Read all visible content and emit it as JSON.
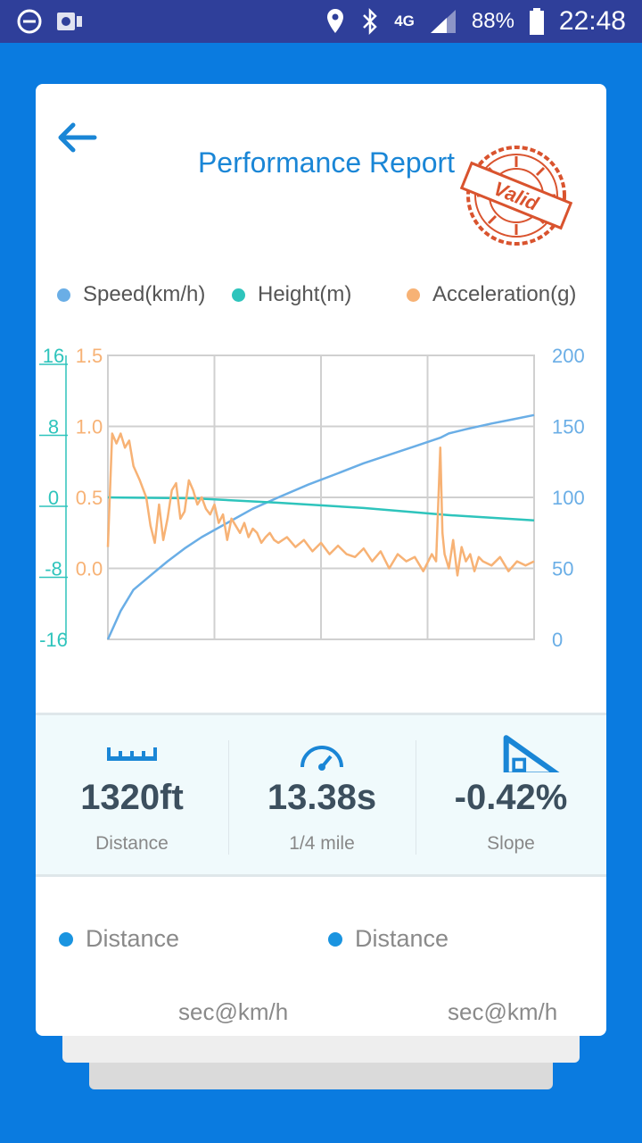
{
  "status_bar": {
    "battery": "88%",
    "time": "22:48",
    "network": "4G"
  },
  "header": {
    "title": "Performance Report",
    "stamp_text": "Valid"
  },
  "legend": [
    {
      "label": "Speed(km/h)",
      "color": "#6aaee6"
    },
    {
      "label": "Height(m)",
      "color": "#2ec4bc"
    },
    {
      "label": "Acceleration(g)",
      "color": "#f7b275"
    }
  ],
  "chart_data": {
    "type": "line",
    "axes": {
      "left_height": {
        "ticks": [
          "16",
          "8",
          "0",
          "-8",
          "-16"
        ],
        "range": [
          -16,
          16
        ],
        "color": "#2ec4bc"
      },
      "left_accel": {
        "ticks": [
          "1.5",
          "1.0",
          "0.5",
          "0.0"
        ],
        "range": [
          -0.5,
          1.5
        ],
        "color": "#f7b275"
      },
      "right_speed": {
        "ticks": [
          "200",
          "150",
          "100",
          "50",
          "0"
        ],
        "range": [
          0,
          200
        ],
        "color": "#6aaee6"
      }
    },
    "grid": true,
    "series": [
      {
        "name": "Speed(km/h)",
        "axis": "right_speed",
        "color": "#6aaee6",
        "x": [
          0,
          0.03,
          0.06,
          0.1,
          0.14,
          0.18,
          0.22,
          0.28,
          0.34,
          0.4,
          0.47,
          0.54,
          0.6,
          0.66,
          0.72,
          0.78,
          0.8,
          0.84,
          0.9,
          0.95,
          1.0
        ],
        "values": [
          0,
          20,
          35,
          45,
          55,
          64,
          72,
          82,
          92,
          100,
          109,
          117,
          124,
          130,
          136,
          142,
          145,
          148,
          152,
          155,
          158
        ]
      },
      {
        "name": "Height(m)",
        "axis": "left_height",
        "color": "#2ec4bc",
        "x": [
          0,
          0.2,
          0.4,
          0.6,
          0.8,
          1.0
        ],
        "values": [
          0,
          -0.1,
          -0.6,
          -1.2,
          -2.0,
          -2.6
        ]
      },
      {
        "name": "Acceleration(g)",
        "axis": "left_accel",
        "color": "#f7b275",
        "x": [
          0,
          0.01,
          0.02,
          0.03,
          0.04,
          0.05,
          0.06,
          0.075,
          0.09,
          0.1,
          0.11,
          0.12,
          0.13,
          0.14,
          0.15,
          0.16,
          0.17,
          0.18,
          0.19,
          0.2,
          0.21,
          0.22,
          0.23,
          0.24,
          0.25,
          0.26,
          0.27,
          0.28,
          0.29,
          0.3,
          0.31,
          0.32,
          0.33,
          0.34,
          0.35,
          0.36,
          0.37,
          0.38,
          0.39,
          0.4,
          0.42,
          0.44,
          0.46,
          0.48,
          0.5,
          0.52,
          0.54,
          0.56,
          0.58,
          0.6,
          0.62,
          0.64,
          0.66,
          0.68,
          0.7,
          0.72,
          0.74,
          0.76,
          0.77,
          0.78,
          0.785,
          0.79,
          0.8,
          0.81,
          0.82,
          0.83,
          0.84,
          0.85,
          0.86,
          0.87,
          0.88,
          0.9,
          0.92,
          0.94,
          0.96,
          0.98,
          1.0
        ],
        "values": [
          0.15,
          0.95,
          0.88,
          0.95,
          0.85,
          0.9,
          0.72,
          0.62,
          0.5,
          0.3,
          0.18,
          0.45,
          0.2,
          0.35,
          0.55,
          0.6,
          0.35,
          0.4,
          0.62,
          0.55,
          0.45,
          0.5,
          0.42,
          0.38,
          0.45,
          0.32,
          0.38,
          0.2,
          0.35,
          0.3,
          0.25,
          0.32,
          0.22,
          0.28,
          0.25,
          0.18,
          0.22,
          0.25,
          0.2,
          0.18,
          0.22,
          0.15,
          0.2,
          0.12,
          0.18,
          0.1,
          0.16,
          0.1,
          0.08,
          0.14,
          0.05,
          0.12,
          0.0,
          0.1,
          0.05,
          0.08,
          -0.02,
          0.1,
          0.05,
          0.85,
          0.25,
          0.1,
          0.0,
          0.2,
          -0.05,
          0.15,
          0.05,
          0.1,
          -0.02,
          0.08,
          0.05,
          0.02,
          0.08,
          -0.02,
          0.05,
          0.02,
          0.05
        ]
      }
    ]
  },
  "stats": [
    {
      "value": "1320ft",
      "label": "Distance",
      "icon": "ruler-icon"
    },
    {
      "value": "13.38s",
      "label": "1/4 mile",
      "icon": "speedometer-icon"
    },
    {
      "value": "-0.42%",
      "label": "Slope",
      "icon": "slope-icon"
    }
  ],
  "bottom": {
    "left": {
      "label": "Distance",
      "unit": "sec@km/h"
    },
    "right": {
      "label": "Distance",
      "unit": "sec@km/h"
    }
  }
}
